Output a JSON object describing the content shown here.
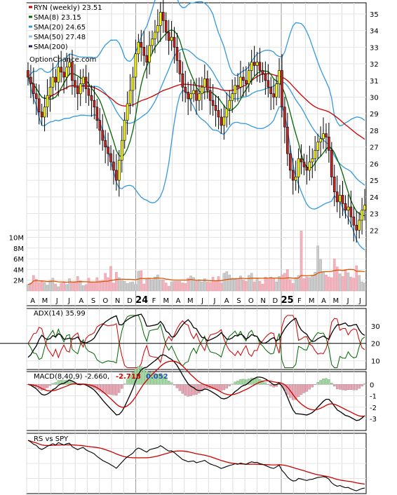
{
  "chart_data": {
    "type": "candlestick",
    "months": [
      "A",
      "M",
      "J",
      "J",
      "A",
      "S",
      "O",
      "N",
      "D",
      "24",
      "F",
      "M",
      "A",
      "M",
      "J",
      "J",
      "A",
      "S",
      "O",
      "N",
      "D",
      "25",
      "F",
      "M",
      "A",
      "M",
      "J",
      "J"
    ],
    "price_axis": {
      "min": 21,
      "max": 35.5,
      "ticks": [
        22,
        23,
        24,
        25,
        26,
        27,
        28,
        29,
        30,
        31,
        32,
        33,
        34,
        35
      ]
    },
    "volume_axis": {
      "ticks": [
        "10M",
        "8M",
        "6M",
        "4M",
        "2M"
      ],
      "values": [
        10,
        8,
        6,
        4,
        2
      ]
    },
    "legend": {
      "symbol": "RYN (weekly) 23.51",
      "sma8": "SMA(8) 23.15",
      "sma20": "SMA(20) 24.65",
      "sma50": "SMA(50) 27.48",
      "sma200": "SMA(200)",
      "source": "OptionChance.com"
    },
    "colors": {
      "up": "#ffff00",
      "down": "#cc2222",
      "sma8": "#006600",
      "sma20": "#3399dd",
      "sma50": "#cc0000",
      "sma200": "#dd6600",
      "band": "#3399dd",
      "vol_up": "#cccccc",
      "vol_down": "#f3b3bd"
    },
    "close": [
      31.2,
      30.8,
      30.2,
      29.9,
      29.1,
      28.8,
      29.4,
      30.1,
      30.6,
      31.2,
      30.9,
      31.8,
      31.5,
      31.2,
      31.8,
      32.1,
      31.0,
      30.6,
      30.2,
      30.8,
      31.2,
      30.5,
      30.1,
      29.8,
      29.4,
      28.6,
      28.0,
      27.4,
      27.0,
      26.6,
      26.1,
      25.6,
      25.0,
      26.2,
      27.4,
      28.6,
      29.6,
      30.4,
      31.2,
      32.6,
      33.3,
      33.0,
      32.5,
      32.1,
      33.1,
      33.5,
      33.9,
      34.3,
      35.1,
      34.6,
      33.9,
      33.4,
      33.6,
      33.0,
      32.2,
      31.4,
      30.6,
      30.3,
      29.9,
      30.2,
      30.4,
      29.8,
      30.2,
      30.6,
      31.1,
      30.4,
      29.8,
      29.5,
      29.2,
      28.8,
      28.3,
      28.8,
      29.3,
      29.8,
      30.2,
      30.7,
      30.6,
      31.2,
      31.0,
      30.8,
      31.6,
      32.1,
      31.9,
      32.1,
      31.6,
      31.4,
      31.0,
      30.6,
      30.2,
      30.0,
      30.8,
      31.6,
      29.4,
      28.2,
      26.6,
      25.6,
      25.0,
      25.2,
      26.3,
      26.1,
      25.8,
      25.6,
      26.1,
      26.3,
      26.8,
      27.3,
      27.5,
      27.8,
      27.6,
      26.8,
      25.2,
      24.3,
      23.7,
      24.1,
      23.6,
      23.2,
      23.4,
      22.8,
      22.3,
      22.0,
      22.6,
      23.2,
      23.5
    ],
    "volume": [
      1.2,
      1.5,
      2.9,
      2.2,
      1.6,
      1.8,
      1.6,
      1.1,
      2.0,
      2.4,
      1.3,
      0.8,
      1.4,
      1.6,
      1.2,
      2.3,
      1.6,
      1.6,
      2.7,
      1.9,
      1.0,
      1.2,
      2.4,
      1.7,
      1.5,
      2.5,
      1.9,
      2.0,
      3.3,
      2.5,
      4.6,
      1.5,
      3.5,
      2.5,
      2.0,
      1.8,
      1.4,
      1.6,
      1.7,
      1.2,
      3.7,
      3.8,
      1.3,
      2.2,
      2.3,
      2.1,
      2.6,
      3.0,
      2.1,
      2.1,
      1.5,
      0.9,
      1.7,
      1.8,
      1.8,
      1.8,
      1.5,
      1.4,
      2.4,
      2.8,
      2.5,
      1.8,
      2.1,
      1.7,
      2.3,
      1.7,
      1.6,
      2.6,
      1.9,
      2.7,
      1.5,
      3.3,
      3.6,
      3.0,
      2.4,
      2.3,
      2.3,
      2.8,
      2.1,
      1.8,
      2.9,
      3.3,
      1.7,
      2.3,
      1.8,
      1.3,
      2.6,
      2.2,
      2.6,
      2.3,
      1.7,
      2.7,
      3.0,
      3.3,
      4.0,
      2.1,
      1.4,
      2.5,
      2.9,
      11.2,
      2.3,
      2.6,
      2.5,
      2.9,
      3.5,
      8.4,
      5.9,
      3.6,
      3.0,
      2.6,
      2.5,
      6.0,
      4.5,
      3.2,
      2.7,
      4.0,
      3.4,
      2.6,
      2.4,
      4.7,
      2.9,
      1.7,
      1.5
    ],
    "adx": {
      "label": "ADX(14) 35.99",
      "ticks": [
        10,
        20,
        30
      ],
      "min": 5,
      "max": 40
    },
    "macd": {
      "label": "MACD(8,40,9) -2.660,",
      "value1": "-2.718",
      "value2": "0.052",
      "ticks": [
        0,
        -1,
        -2,
        -3
      ],
      "min": -3.8,
      "max": 1.0
    },
    "rs": {
      "label": "RS vs SPY"
    }
  }
}
